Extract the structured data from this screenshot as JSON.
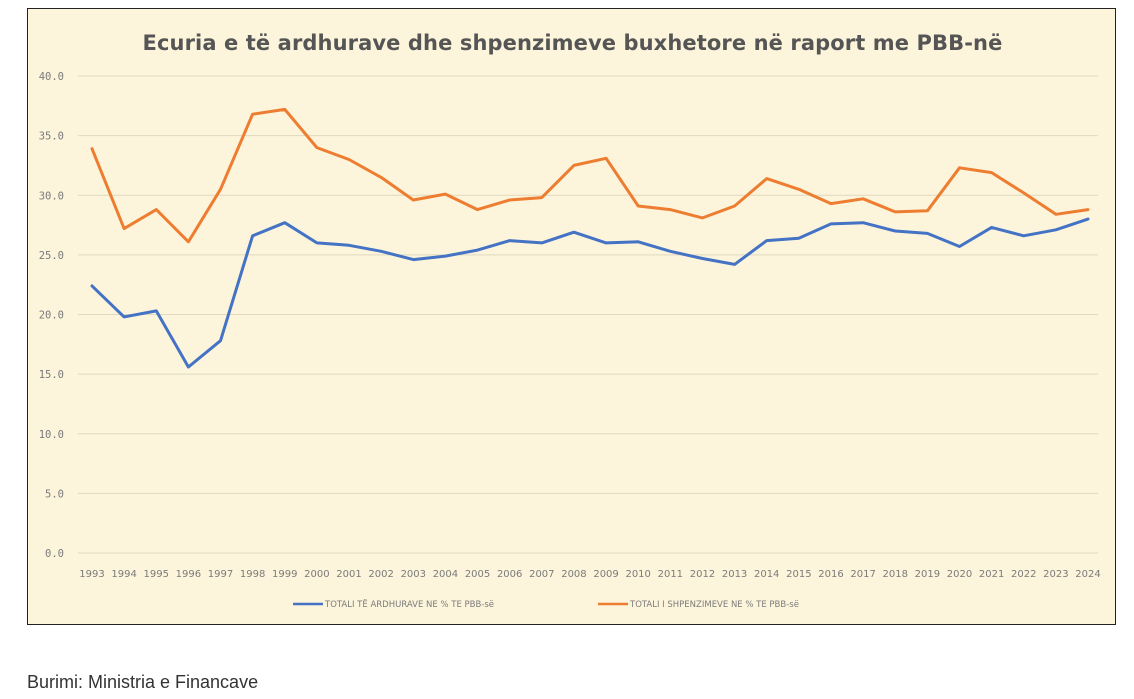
{
  "colors": {
    "background": "#fdf5db",
    "revenue": "#4472c4",
    "expenditure": "#ed7d31",
    "grid": "#e0d9bf"
  },
  "source_text": "Burimi: Ministria e Financave",
  "chart_data": {
    "type": "line",
    "title": "Ecuria e të ardhurave dhe shpenzimeve buxhetore në raport me PBB-në",
    "xlabel": "",
    "ylabel": "",
    "ylim": [
      0,
      40
    ],
    "yticks": [
      "0.0",
      "5.0",
      "10.0",
      "15.0",
      "20.0",
      "25.0",
      "30.0",
      "35.0",
      "40.0"
    ],
    "grid": true,
    "legend_position": "bottom",
    "categories": [
      "1993",
      "1994",
      "1995",
      "1996",
      "1997",
      "1998",
      "1999",
      "2000",
      "2001",
      "2002",
      "2003",
      "2004",
      "2005",
      "2006",
      "2007",
      "2008",
      "2009",
      "2010",
      "2011",
      "2012",
      "2013",
      "2014",
      "2015",
      "2016",
      "2017",
      "2018",
      "2019",
      "2020",
      "2021",
      "2022",
      "2023",
      "2024"
    ],
    "series": [
      {
        "name": "TOTALI TË ARDHURAVE NE % TE PBB-së",
        "values": [
          22.4,
          19.8,
          20.3,
          15.6,
          17.8,
          26.6,
          27.7,
          26.0,
          25.8,
          25.3,
          24.6,
          24.9,
          25.4,
          26.2,
          26.0,
          26.9,
          26.0,
          26.1,
          25.3,
          24.7,
          24.2,
          26.2,
          26.4,
          27.6,
          27.7,
          27.0,
          26.8,
          25.7,
          27.3,
          26.6,
          27.1,
          28.0
        ]
      },
      {
        "name": "TOTALI I SHPENZIMEVE NE % TE PBB-së",
        "values": [
          33.9,
          27.2,
          28.8,
          26.1,
          30.5,
          36.8,
          37.2,
          34.0,
          33.0,
          31.5,
          29.6,
          30.1,
          28.8,
          29.6,
          29.8,
          32.5,
          33.1,
          29.1,
          28.8,
          28.1,
          29.1,
          31.4,
          30.5,
          29.3,
          29.7,
          28.6,
          28.7,
          32.3,
          31.9,
          30.2,
          28.4,
          28.8
        ]
      }
    ]
  }
}
